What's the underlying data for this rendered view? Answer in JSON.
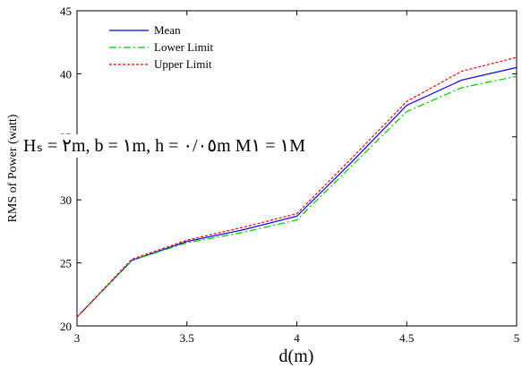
{
  "chart_data": {
    "type": "line",
    "title": "",
    "xlabel": "d(m)",
    "ylabel": "RMS of Power (watt)",
    "xlim": [
      3,
      5
    ],
    "ylim": [
      20,
      45
    ],
    "x_ticks": [
      "3",
      "3.5",
      "4",
      "4.5",
      "5"
    ],
    "y_ticks": [
      "20",
      "25",
      "30",
      "35",
      "40",
      "45"
    ],
    "x": [
      3,
      3.25,
      3.5,
      3.75,
      4,
      4.25,
      4.5,
      4.75,
      5
    ],
    "series": [
      {
        "name": "Mean",
        "color": "#0000ff",
        "style": "solid",
        "values": [
          20.7,
          25.2,
          26.7,
          27.6,
          28.7,
          33.0,
          37.5,
          39.5,
          40.5
        ]
      },
      {
        "name": "Lower Limit",
        "color": "#00c800",
        "style": "dash-dot",
        "values": [
          20.7,
          25.2,
          26.6,
          27.4,
          28.4,
          32.7,
          37.0,
          38.9,
          39.8
        ]
      },
      {
        "name": "Upper Limit",
        "color": "#ff0000",
        "style": "dotted",
        "values": [
          20.7,
          25.3,
          26.8,
          27.8,
          28.9,
          33.3,
          37.8,
          40.2,
          41.3
        ]
      }
    ],
    "annotation": "Hₛ = ٢m, b = ١m, h = ٠/٠٥m  M١ = ١M",
    "grid": false,
    "legend_position": "top-left"
  }
}
